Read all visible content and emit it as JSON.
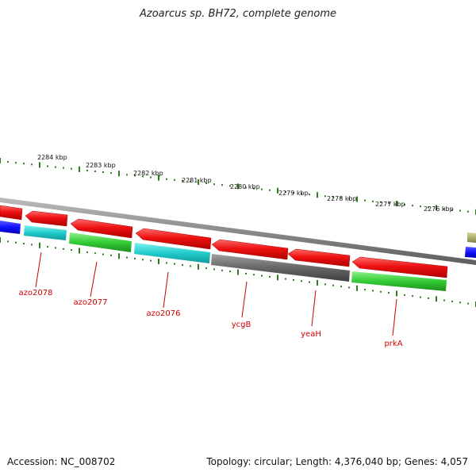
{
  "title": "Azoarcus sp. BH72, complete genome",
  "accession": "Accession: NC_008702",
  "summary": "Topology: circular; Length: 4,376,040 bp; Genes: 4,057",
  "scale_labels": [
    "2284 kbp",
    "2283 kbp",
    "2282 kbp",
    "2281 kbp",
    "2280 kbp",
    "2279 kbp",
    "2278 kbp",
    "2277 kbp",
    "2276 kbp"
  ],
  "gene_labels": [
    "azo2078",
    "azo2077",
    "azo2076",
    "ycgB",
    "yeaH",
    "prkA"
  ],
  "colors": {
    "cds": "#ee1111",
    "blue": "#1a1aff",
    "cyan": "#22cccc",
    "gray": "#666666",
    "green": "#33cc33",
    "olive": "#b0b070",
    "ticks": "#2e7d1e",
    "backbone": "#8a8a8a",
    "labels": "#cc0000"
  }
}
